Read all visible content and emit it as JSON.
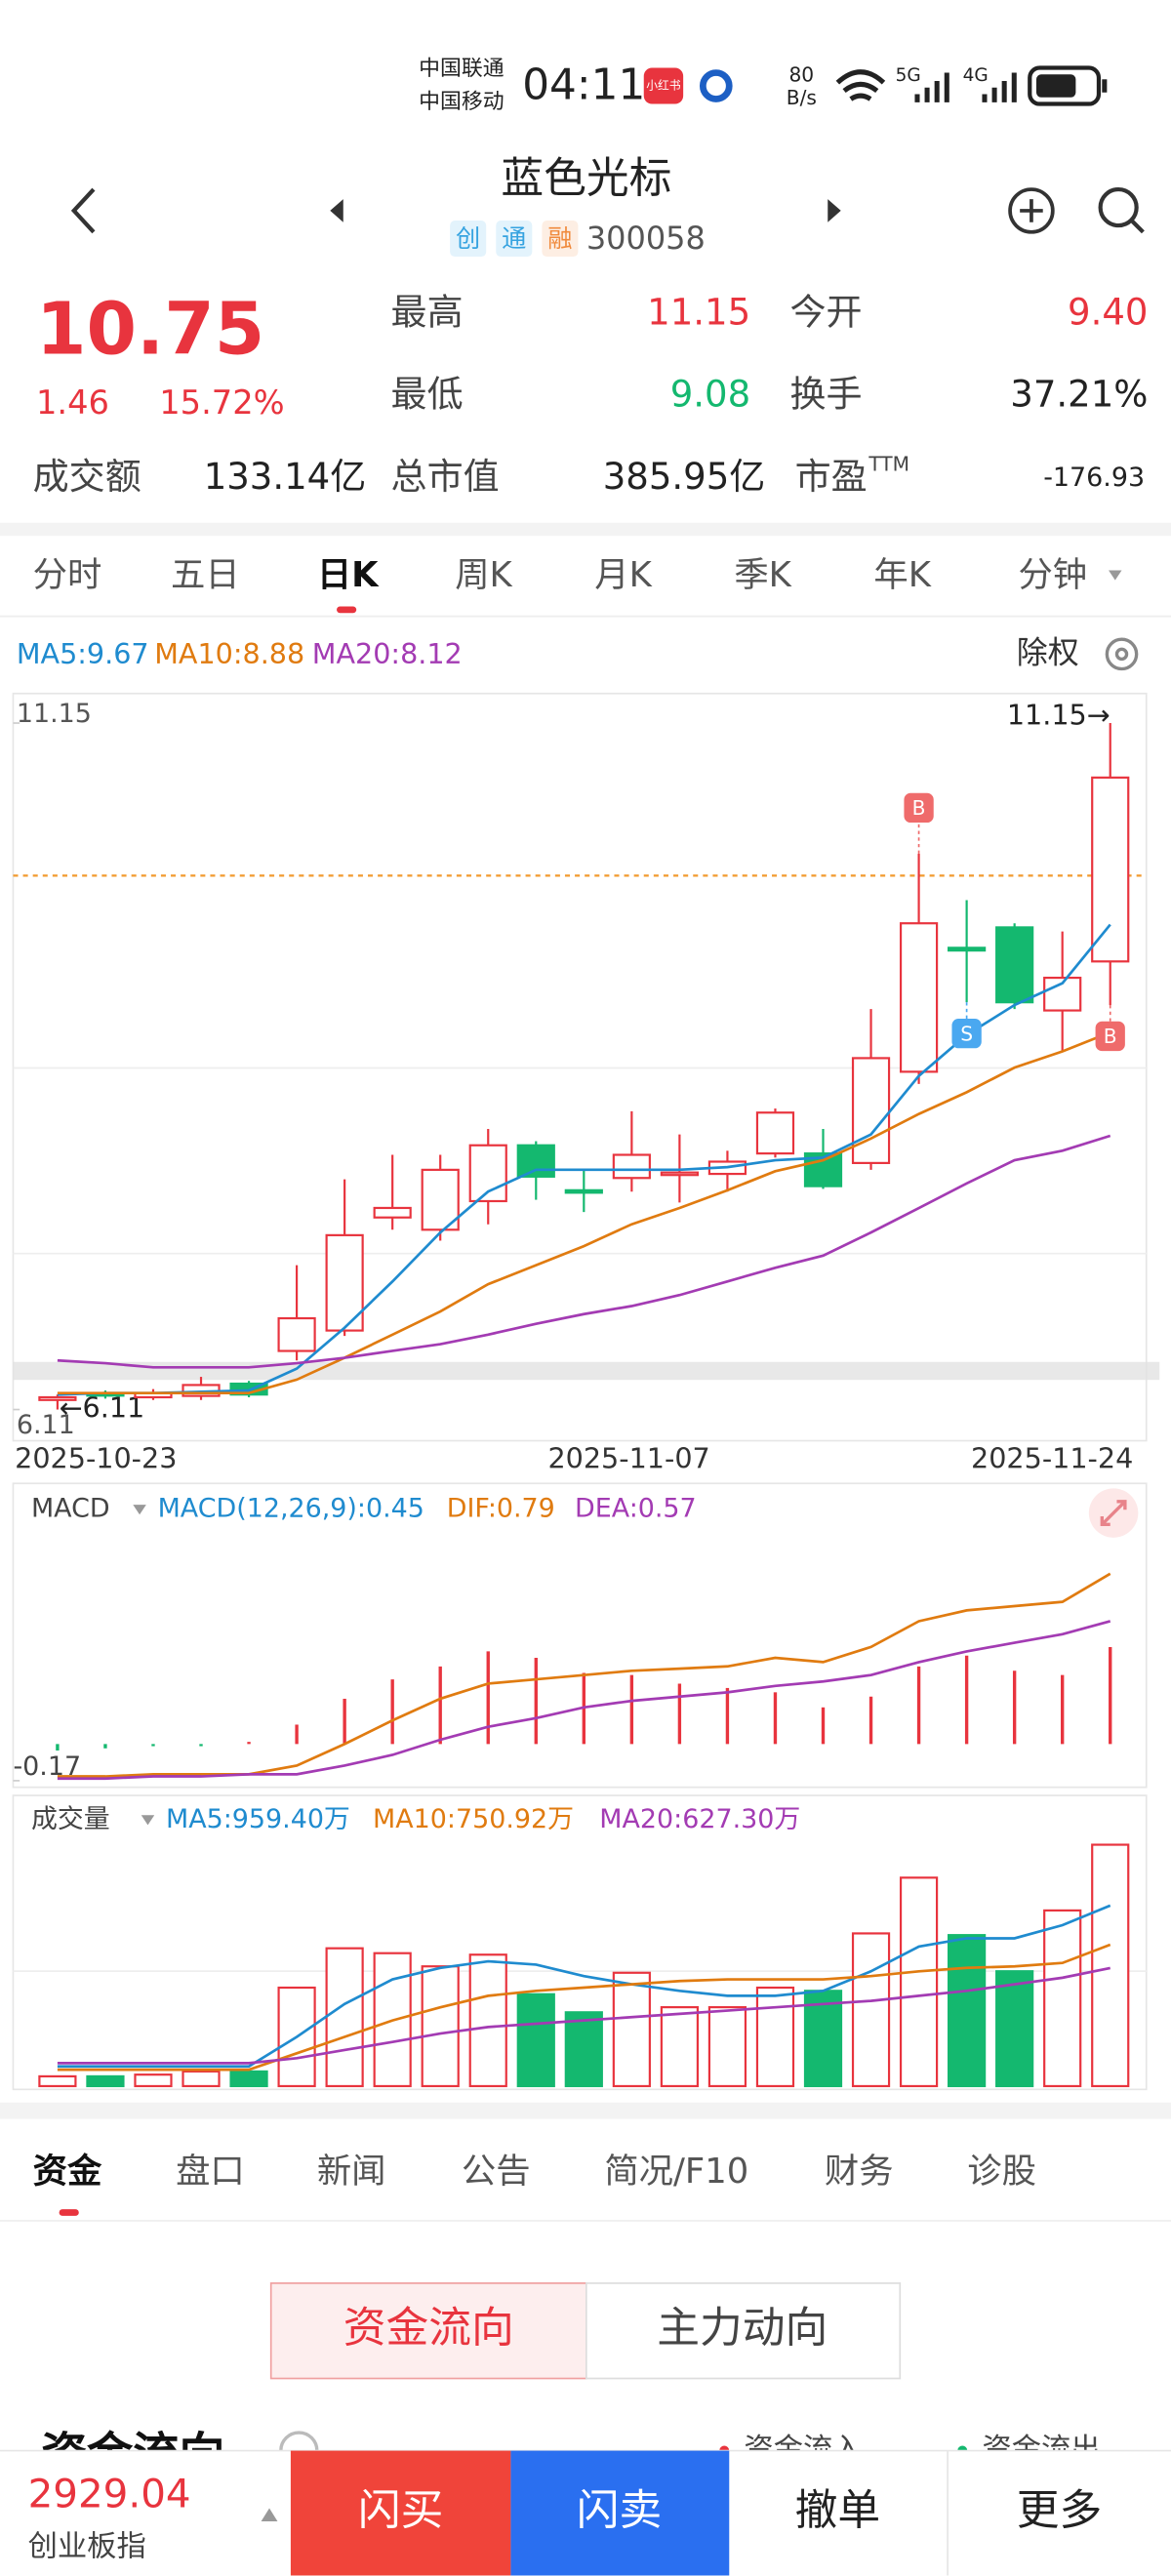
{
  "status_bar": {
    "carrier1": "中国联通",
    "carrier2": "中国移动",
    "time": "04:11",
    "app_badge": "小红书",
    "speed_value": "80",
    "speed_unit": "B/s",
    "net1": "5G",
    "net2": "4G"
  },
  "header": {
    "title": "蓝色光标",
    "tags": [
      "创",
      "通",
      "融"
    ],
    "code": "300058"
  },
  "quote": {
    "price": "10.75",
    "change": "1.46",
    "change_pct": "15.72%",
    "fields": [
      {
        "label": "最高",
        "value": "11.15"
      },
      {
        "label": "今开",
        "value": "9.40"
      },
      {
        "label": "最低",
        "value": "9.08"
      },
      {
        "label": "换手",
        "value": "37.21%"
      },
      {
        "label": "成交额",
        "value": "133.14亿"
      },
      {
        "label": "总市值",
        "value": "385.95亿"
      },
      {
        "label": "市盈",
        "sup": "TTM",
        "value": "-176.93"
      }
    ]
  },
  "period_tabs": {
    "items": [
      "分时",
      "五日",
      "日K",
      "周K",
      "月K",
      "季K",
      "年K",
      "分钟"
    ],
    "active": 2
  },
  "kline": {
    "ma_labels": [
      "MA5:9.67",
      "MA10:8.88",
      "MA20:8.12"
    ],
    "adjust": "除权",
    "ylim": [
      6.11,
      11.15
    ],
    "yticks": [
      6.11,
      11.15
    ],
    "max_label": "11.15→",
    "min_label": "←6.11",
    "dates": [
      "2025-10-23",
      "2025-11-07",
      "2025-11-24"
    ],
    "ref_line": 10.03,
    "candles": {
      "open": [
        6.18,
        6.23,
        6.2,
        6.21,
        6.3,
        6.54,
        6.69,
        7.52,
        7.43,
        7.64,
        8.05,
        7.72,
        7.81,
        7.84,
        7.84,
        7.99,
        7.99,
        7.92,
        8.59,
        9.5,
        9.65,
        9.04,
        9.4
      ],
      "close": [
        6.2,
        6.22,
        6.23,
        6.29,
        6.22,
        6.78,
        7.39,
        7.59,
        7.87,
        8.05,
        7.82,
        7.71,
        7.98,
        7.85,
        7.93,
        8.29,
        7.75,
        8.69,
        9.68,
        9.48,
        9.1,
        9.28,
        10.75
      ],
      "high": [
        6.22,
        6.25,
        6.26,
        6.35,
        6.32,
        7.17,
        7.8,
        7.98,
        7.98,
        8.17,
        8.08,
        7.87,
        8.3,
        8.13,
        8.01,
        8.32,
        8.17,
        9.05,
        10.19,
        9.85,
        9.68,
        9.62,
        11.15
      ],
      "low": [
        6.11,
        6.19,
        6.18,
        6.18,
        6.2,
        6.47,
        6.65,
        7.43,
        7.35,
        7.47,
        7.65,
        7.56,
        7.71,
        7.63,
        7.71,
        7.96,
        7.73,
        7.87,
        8.5,
        9.1,
        9.05,
        8.74,
        9.08
      ]
    },
    "ma": [
      {
        "color": "#1f8bcf",
        "values": [
          6.22,
          6.23,
          6.23,
          6.24,
          6.25,
          6.41,
          6.71,
          7.05,
          7.41,
          7.71,
          7.87,
          7.87,
          7.87,
          7.87,
          7.89,
          7.94,
          7.96,
          8.13,
          8.56,
          8.86,
          9.08,
          9.24,
          9.67
        ]
      },
      {
        "color": "#e07b10",
        "values": [
          6.23,
          6.23,
          6.23,
          6.23,
          6.23,
          6.33,
          6.49,
          6.66,
          6.83,
          7.03,
          7.17,
          7.31,
          7.47,
          7.59,
          7.72,
          7.86,
          7.94,
          8.1,
          8.28,
          8.44,
          8.62,
          8.74,
          8.88
        ]
      },
      {
        "color": "#a33bb3",
        "values": [
          6.47,
          6.45,
          6.42,
          6.42,
          6.42,
          6.45,
          6.49,
          6.54,
          6.59,
          6.66,
          6.74,
          6.81,
          6.87,
          6.95,
          7.05,
          7.15,
          7.24,
          7.41,
          7.59,
          7.77,
          7.94,
          8.01,
          8.12
        ]
      }
    ],
    "markers": [
      {
        "index": 18,
        "label": "B",
        "side": "above"
      },
      {
        "index": 19,
        "label": "S",
        "side": "below"
      },
      {
        "index": 22,
        "label": "B",
        "side": "below"
      }
    ]
  },
  "macd": {
    "name": "MACD",
    "labels": [
      "MACD(12,26,9):0.45",
      "DIF:0.79",
      "DEA:0.57"
    ],
    "yticks": [
      -0.17
    ],
    "bars": [
      -0.03,
      -0.02,
      -0.01,
      -0.01,
      0.01,
      0.09,
      0.21,
      0.3,
      0.36,
      0.43,
      0.4,
      0.33,
      0.32,
      0.28,
      0.26,
      0.24,
      0.17,
      0.22,
      0.36,
      0.41,
      0.34,
      0.32,
      0.45
    ],
    "dif": [
      -0.15,
      -0.15,
      -0.14,
      -0.14,
      -0.14,
      -0.1,
      0.0,
      0.11,
      0.21,
      0.28,
      0.3,
      0.32,
      0.34,
      0.35,
      0.36,
      0.4,
      0.38,
      0.45,
      0.57,
      0.62,
      0.64,
      0.66,
      0.79
    ],
    "dea": [
      -0.16,
      -0.16,
      -0.15,
      -0.15,
      -0.14,
      -0.14,
      -0.1,
      -0.05,
      0.02,
      0.08,
      0.12,
      0.17,
      0.2,
      0.22,
      0.24,
      0.27,
      0.29,
      0.32,
      0.38,
      0.43,
      0.47,
      0.51,
      0.57
    ]
  },
  "volume": {
    "name": "成交量",
    "labels": [
      "MA5:959.40万",
      "MA10:750.92万",
      "MA20:627.30万"
    ],
    "values": [
      52,
      52,
      61,
      78,
      78,
      523,
      732,
      706,
      636,
      698,
      488,
      392,
      602,
      419,
      419,
      523,
      506,
      811,
      1107,
      802,
      610,
      933,
      1282
    ],
    "ma": [
      [
        105,
        105,
        105,
        105,
        105,
        262,
        436,
        567,
        628,
        663,
        645,
        584,
        541,
        506,
        480,
        480,
        506,
        610,
        741,
        785,
        785,
        855,
        959
      ],
      [
        87,
        87,
        87,
        87,
        87,
        174,
        262,
        349,
        419,
        480,
        506,
        523,
        541,
        558,
        567,
        567,
        567,
        584,
        610,
        628,
        636,
        654,
        751
      ],
      [
        122,
        122,
        122,
        122,
        122,
        148,
        192,
        235,
        279,
        314,
        331,
        349,
        366,
        384,
        401,
        419,
        436,
        453,
        480,
        506,
        541,
        576,
        627
      ]
    ]
  },
  "bottom_tabs": {
    "items": [
      "资金",
      "盘口",
      "新闻",
      "公告",
      "简况/F10",
      "财务",
      "诊股"
    ],
    "active": 0
  },
  "fund": {
    "toggle": [
      "资金流向",
      "主力动向"
    ],
    "heading": "资金流向",
    "legend": [
      "资金流入",
      "资金流出"
    ]
  },
  "bottom_bar": {
    "index_value": "2929.04",
    "index_name": "创业板指",
    "buttons": [
      "闪买",
      "闪卖",
      "撤单",
      "更多"
    ]
  }
}
